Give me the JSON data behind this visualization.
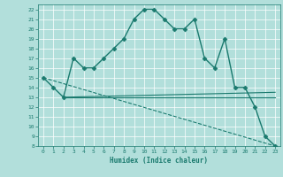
{
  "xlabel": "Humidex (Indice chaleur)",
  "background_color": "#b2dfdb",
  "grid_color": "#ffffff",
  "line_color": "#1a7a6e",
  "xlim": [
    -0.5,
    23.5
  ],
  "ylim": [
    8,
    22.5
  ],
  "xticks": [
    0,
    1,
    2,
    3,
    4,
    5,
    6,
    7,
    8,
    9,
    10,
    11,
    12,
    13,
    14,
    15,
    16,
    17,
    18,
    19,
    20,
    21,
    22,
    23
  ],
  "yticks": [
    8,
    9,
    10,
    11,
    12,
    13,
    14,
    15,
    16,
    17,
    18,
    19,
    20,
    21,
    22
  ],
  "series": [
    {
      "x": [
        0,
        1,
        2,
        3,
        4,
        5,
        6,
        7,
        8,
        9,
        10,
        11,
        12,
        13,
        14,
        15,
        16,
        17,
        18,
        19,
        20,
        21,
        22,
        23
      ],
      "y": [
        15,
        14,
        13,
        17,
        16,
        16,
        17,
        18,
        19,
        21,
        22,
        22,
        21,
        20,
        20,
        21,
        17,
        16,
        19,
        14,
        14,
        12,
        9,
        8
      ],
      "marker": "D",
      "markersize": 2.5,
      "linewidth": 1.0,
      "linestyle": "-"
    },
    {
      "x": [
        2,
        23
      ],
      "y": [
        13,
        13.5
      ],
      "marker": null,
      "markersize": 0,
      "linewidth": 0.8,
      "linestyle": "-"
    },
    {
      "x": [
        2,
        23
      ],
      "y": [
        13,
        13
      ],
      "marker": null,
      "markersize": 0,
      "linewidth": 0.8,
      "linestyle": "-"
    },
    {
      "x": [
        0,
        23
      ],
      "y": [
        15,
        8
      ],
      "marker": null,
      "markersize": 0,
      "linewidth": 0.8,
      "linestyle": "--"
    }
  ]
}
